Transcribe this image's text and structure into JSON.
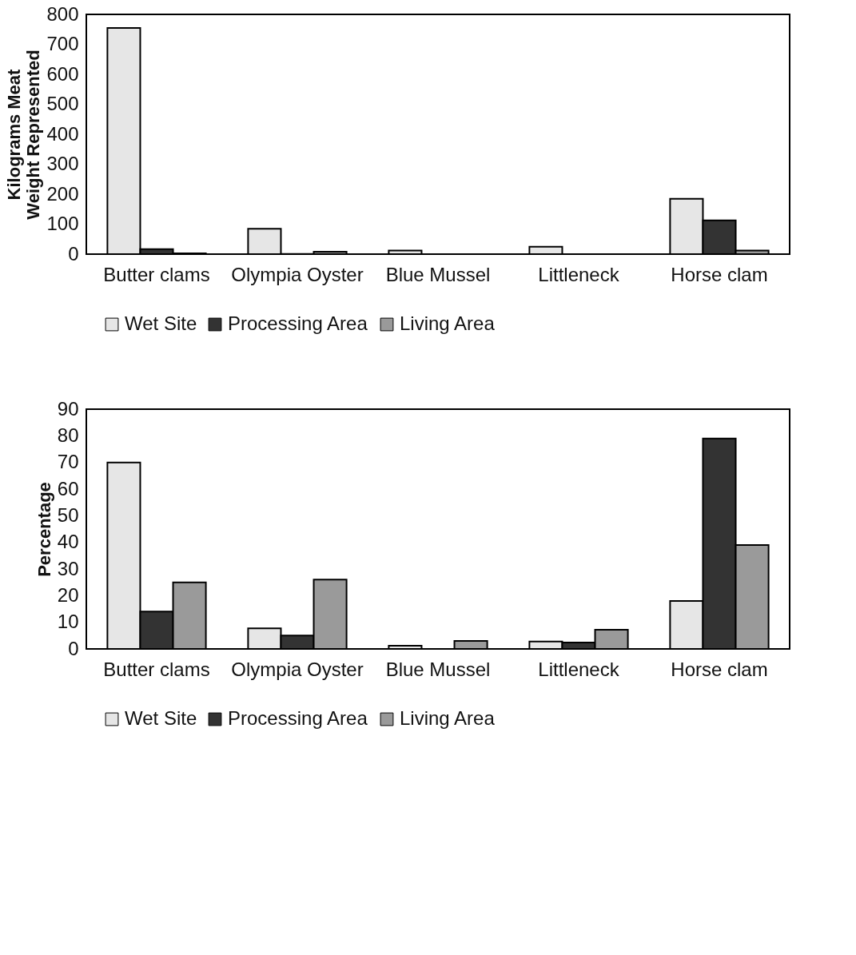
{
  "chart_data": [
    {
      "type": "bar",
      "ylabel": "Kilograms Meat Weight Represented",
      "categories": [
        "Butter clams",
        "Olympia Oyster",
        "Blue Mussel",
        "Littleneck",
        "Horse clam"
      ],
      "ylim": [
        0,
        800
      ],
      "yticks": [
        0,
        100,
        200,
        300,
        400,
        500,
        600,
        700,
        800
      ],
      "grid": false,
      "legend": "bottom",
      "series": [
        {
          "name": "Wet Site",
          "color": "#e6e6e6",
          "values": [
            755,
            85,
            12,
            25,
            185
          ]
        },
        {
          "name": "Processing Area",
          "color": "#333333",
          "values": [
            17,
            1,
            null,
            null,
            113
          ]
        },
        {
          "name": "Living Area",
          "color": "#9a9a9a",
          "values": [
            3,
            8,
            null,
            null,
            12
          ]
        }
      ]
    },
    {
      "type": "bar",
      "ylabel": "Percentage",
      "categories": [
        "Butter clams",
        "Olympia Oyster",
        "Blue Mussel",
        "Littleneck",
        "Horse clam"
      ],
      "ylim": [
        0,
        90
      ],
      "yticks": [
        0,
        10,
        20,
        30,
        40,
        50,
        60,
        70,
        80,
        90
      ],
      "grid": false,
      "legend": "bottom",
      "series": [
        {
          "name": "Wet Site",
          "color": "#e6e6e6",
          "values": [
            70,
            7.7,
            1.2,
            2.8,
            18
          ]
        },
        {
          "name": "Processing Area",
          "color": "#333333",
          "values": [
            14,
            5,
            null,
            2.4,
            79
          ]
        },
        {
          "name": "Living Area",
          "color": "#9a9a9a",
          "values": [
            25,
            26,
            3,
            7.2,
            39
          ]
        }
      ]
    }
  ]
}
